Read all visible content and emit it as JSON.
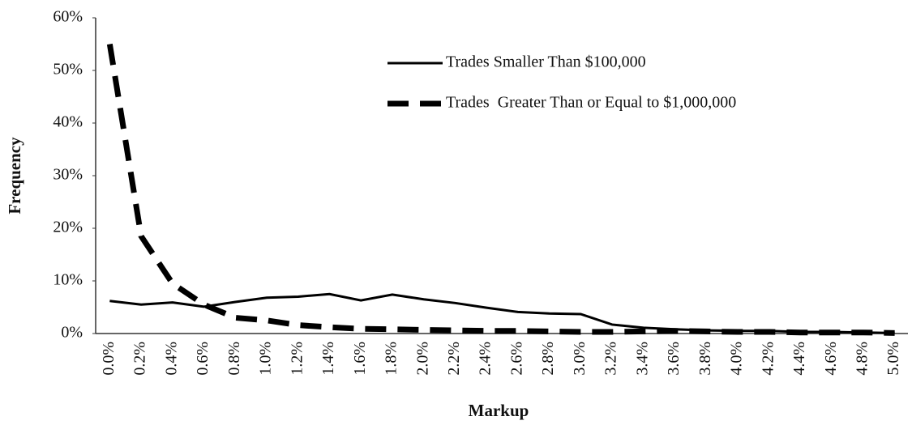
{
  "chart_data": {
    "type": "line",
    "x_label": "Markup",
    "y_label": "Frequency",
    "categories": [
      "0.0%",
      "0.2%",
      "0.4%",
      "0.6%",
      "0.8%",
      "1.0%",
      "1.2%",
      "1.4%",
      "1.6%",
      "1.8%",
      "2.0%",
      "2.2%",
      "2.4%",
      "2.6%",
      "2.8%",
      "3.0%",
      "3.2%",
      "3.4%",
      "3.6%",
      "3.8%",
      "4.0%",
      "4.2%",
      "4.4%",
      "4.6%",
      "4.8%",
      "5.0%"
    ],
    "series": [
      {
        "name": "Trades Smaller Than $100,000",
        "color": "#000000",
        "style": "solid",
        "values": [
          6.2,
          5.5,
          5.9,
          5.1,
          6.0,
          6.8,
          7.0,
          7.5,
          6.3,
          7.4,
          6.5,
          5.8,
          4.9,
          4.1,
          3.8,
          3.7,
          1.7,
          1.1,
          0.8,
          0.6,
          0.5,
          0.5,
          0.3,
          0.3,
          0.2,
          0.1
        ]
      },
      {
        "name": "Trades  Greater Than or Equal to $1,000,000",
        "color": "#000000",
        "style": "dashed",
        "values": [
          55,
          18.5,
          9.5,
          5.5,
          3.0,
          2.5,
          1.6,
          1.2,
          0.9,
          0.8,
          0.7,
          0.6,
          0.5,
          0.5,
          0.4,
          0.3,
          0.3,
          0.4,
          0.5,
          0.4,
          0.3,
          0.3,
          0.2,
          0.2,
          0.2,
          0.1
        ]
      }
    ],
    "ylim": [
      0,
      60
    ],
    "yticks": [
      {
        "value": 0,
        "label": "0%"
      },
      {
        "value": 10,
        "label": "10%"
      },
      {
        "value": 20,
        "label": "20%"
      },
      {
        "value": 30,
        "label": "30%"
      },
      {
        "value": 40,
        "label": "40%"
      },
      {
        "value": 50,
        "label": "50%"
      },
      {
        "value": 60,
        "label": "60%"
      }
    ],
    "grid": false,
    "legend": "top-right"
  }
}
